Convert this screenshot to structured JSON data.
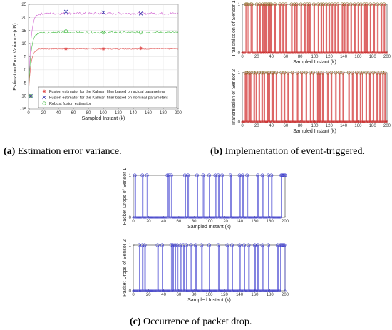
{
  "captions": {
    "a_letter": "(a)",
    "a_text": " Estimation error variance.",
    "b_letter": "(b)",
    "b_text": " Implementation of event-triggered.",
    "c_letter": "(c)",
    "c_text": " Occurrence of packet drop."
  },
  "chart_data": [
    {
      "id": "a",
      "type": "line",
      "xlabel": "Sampled Instant (k)",
      "ylabel": "Estimation Error Variance (dB)",
      "xlim": [
        0,
        200
      ],
      "ylim": [
        -15,
        25
      ],
      "xticks": [
        0,
        20,
        40,
        60,
        80,
        100,
        120,
        140,
        160,
        180,
        200
      ],
      "yticks": [
        -15,
        -10,
        -5,
        0,
        5,
        10,
        15,
        20,
        25
      ],
      "grid": true,
      "legend_position": "bottom-right",
      "series": [
        {
          "name": "Fusion estimator for the Kalman filter based on actual parameters",
          "color": "#e05050",
          "marker": "*",
          "start": -10,
          "level": 8,
          "noise": 0.2,
          "marker_x": [
            3,
            50,
            100,
            150
          ],
          "marker_y": [
            -10,
            8,
            8,
            8.2
          ]
        },
        {
          "name": "Fusion estimator for the Kalman filter based on nominal parameters",
          "color": "#d060d0",
          "marker": "x",
          "start": -10,
          "level": 21.5,
          "noise": 0.45,
          "marker_x": [
            3,
            50,
            100,
            150
          ],
          "marker_y": [
            -10,
            22.2,
            21.9,
            21.5
          ]
        },
        {
          "name": "Robust fusion estimator",
          "color": "#44bb44",
          "marker": "o",
          "start": -10,
          "level": 14.2,
          "noise": 0.35,
          "marker_x": [
            3,
            50,
            100,
            150
          ],
          "marker_y": [
            -10,
            14.7,
            14.2,
            14.2
          ]
        }
      ]
    },
    {
      "id": "b1",
      "type": "line",
      "xlabel": "Sampled Instant (k)",
      "ylabel": "Transmission of Sensor 1",
      "xlim": [
        0,
        200
      ],
      "ylim": [
        0,
        1
      ],
      "xticks": [
        0,
        20,
        40,
        60,
        80,
        100,
        120,
        140,
        160,
        180,
        200
      ],
      "yticks": [
        0,
        1
      ],
      "color": "#cc2222",
      "marker": "o",
      "ones": [
        5,
        6,
        7,
        12,
        13,
        20,
        24,
        28,
        31,
        33,
        36,
        38,
        40,
        45,
        52,
        56,
        60,
        68,
        72,
        75,
        81,
        86,
        90,
        93,
        99,
        105,
        109,
        112,
        116,
        120,
        124,
        128,
        132,
        138,
        141,
        145,
        150,
        155,
        160,
        164,
        169,
        172,
        177,
        182,
        187,
        192,
        196
      ]
    },
    {
      "id": "b2",
      "type": "line",
      "xlabel": "Sampled Instant (k)",
      "ylabel": "Transmission of Sensor 2",
      "xlim": [
        0,
        200
      ],
      "ylim": [
        0,
        1
      ],
      "xticks": [
        0,
        20,
        40,
        60,
        80,
        100,
        120,
        140,
        160,
        180,
        200
      ],
      "yticks": [
        0,
        1
      ],
      "color": "#cc2222",
      "marker": "o",
      "ones": [
        4,
        6,
        9,
        11,
        16,
        19,
        23,
        27,
        30,
        35,
        37,
        41,
        43,
        47,
        54,
        58,
        63,
        69,
        76,
        82,
        88,
        94,
        98,
        104,
        107,
        111,
        118,
        123,
        129,
        134,
        139,
        147,
        152,
        158,
        163,
        166,
        171,
        176,
        181,
        186,
        190,
        194,
        197
      ]
    },
    {
      "id": "c1",
      "type": "line",
      "xlabel": "Sampled Instant (k)",
      "ylabel": "Packet Drops of Sensor 1",
      "xlim": [
        0,
        200
      ],
      "ylim": [
        0,
        1
      ],
      "xticks": [
        0,
        20,
        40,
        60,
        80,
        100,
        120,
        140,
        160,
        180,
        200
      ],
      "yticks": [
        0,
        1
      ],
      "color": "#3333cc",
      "marker": "o",
      "ones": [
        2,
        12,
        18,
        45,
        47,
        50,
        68,
        72,
        84,
        92,
        100,
        108,
        112,
        117,
        128,
        140,
        144,
        150,
        164,
        170,
        178,
        182,
        195,
        196,
        197,
        198,
        199,
        200
      ]
    },
    {
      "id": "c2",
      "type": "line",
      "xlabel": "Sampled Instant (k)",
      "ylabel": "Packet Drops of Sensor 2",
      "xlim": [
        0,
        200
      ],
      "ylim": [
        0,
        1
      ],
      "xticks": [
        0,
        20,
        40,
        60,
        80,
        100,
        120,
        140,
        160,
        180,
        200
      ],
      "yticks": [
        0,
        1
      ],
      "color": "#3333cc",
      "marker": "o",
      "ones": [
        8,
        12,
        15,
        32,
        38,
        50,
        52,
        55,
        58,
        62,
        66,
        70,
        76,
        82,
        90,
        100,
        112,
        124,
        130,
        140,
        146,
        152,
        160,
        164,
        170,
        178,
        190,
        194,
        195,
        196,
        197,
        198,
        199
      ]
    }
  ]
}
